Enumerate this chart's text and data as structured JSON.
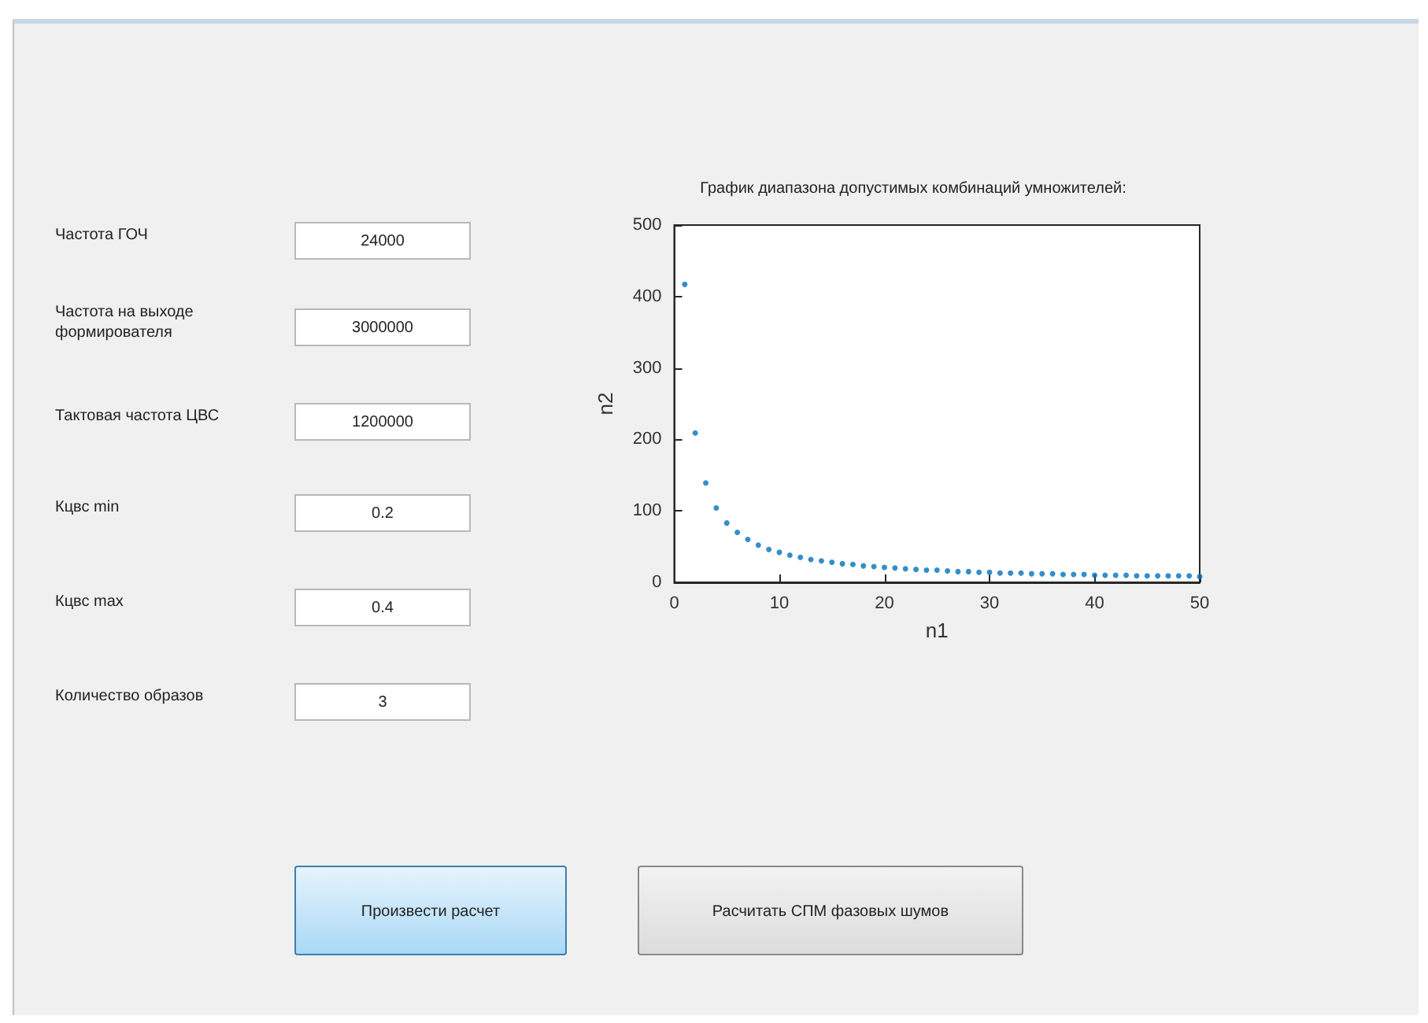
{
  "chart_data": [
    {
      "type": "other",
      "annotations": [
        "Частота ГОЧ",
        "24000",
        "Частота на выходе формирователя",
        "3000000",
        "Тактовая частота ЦВС",
        "1200000",
        "Кцвс min",
        "0.2",
        "Кцвс max",
        "0.4",
        "Количество образов",
        "3",
        "Произвести расчет",
        "Расчитать СПМ фазовых шумов"
      ]
    },
    {
      "type": "scatter",
      "title": "График диапазона допустимых комбинаций умножителей:",
      "xlabel": "n1",
      "ylabel": "n2",
      "x": [
        1,
        2,
        3,
        4,
        5,
        6,
        7,
        8,
        9,
        10,
        11,
        12,
        13,
        14,
        15,
        16,
        17,
        18,
        19,
        20,
        21,
        22,
        23,
        24,
        25,
        26,
        27,
        28,
        29,
        30,
        31,
        32,
        33,
        34,
        35,
        36,
        37,
        38,
        39,
        40,
        41,
        42,
        43,
        44,
        45,
        46,
        47,
        48,
        49,
        50
      ],
      "series": [
        {
          "color": "#0072bd",
          "values": [
            417,
            209,
            139,
            104,
            83,
            70,
            60,
            52,
            46,
            42,
            38,
            35,
            32,
            30,
            28,
            26,
            25,
            23,
            22,
            21,
            20,
            19,
            18,
            17,
            17,
            16,
            15,
            15,
            14,
            14,
            13,
            13,
            13,
            12,
            12,
            12,
            11,
            11,
            11,
            10,
            10,
            10,
            10,
            9,
            9,
            9,
            9,
            9,
            9,
            8
          ]
        }
      ],
      "xlim": [
        0,
        50
      ],
      "xticks": [
        0,
        10,
        20,
        30,
        40,
        50
      ],
      "ylim": [
        0,
        500
      ],
      "yticks": [
        0,
        100,
        200,
        300,
        400,
        500
      ],
      "grid": false,
      "marker": "circle"
    }
  ]
}
